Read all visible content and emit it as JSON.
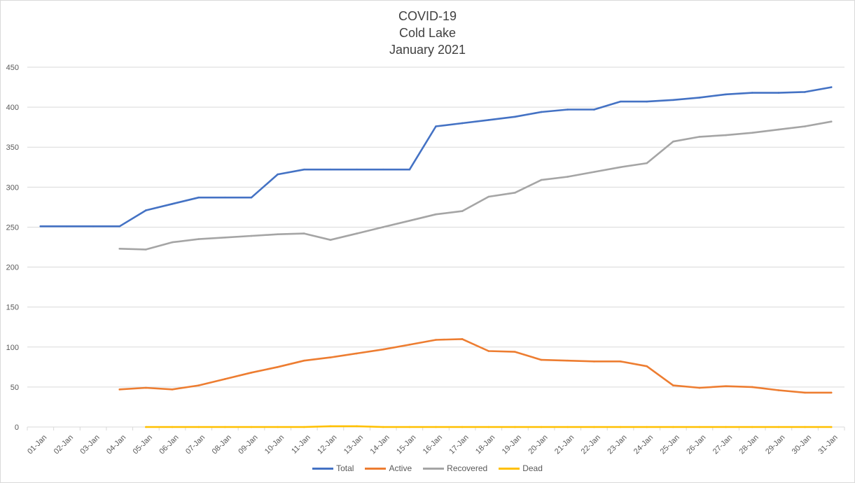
{
  "chart_data": {
    "type": "line",
    "title": [
      "COVID-19",
      "Cold Lake",
      "January 2021"
    ],
    "categories": [
      "01-Jan",
      "02-Jan",
      "03-Jan",
      "04-Jan",
      "05-Jan",
      "06-Jan",
      "07-Jan",
      "08-Jan",
      "09-Jan",
      "10-Jan",
      "11-Jan",
      "12-Jan",
      "13-Jan",
      "14-Jan",
      "15-Jan",
      "16-Jan",
      "17-Jan",
      "18-Jan",
      "19-Jan",
      "20-Jan",
      "21-Jan",
      "22-Jan",
      "23-Jan",
      "24-Jan",
      "25-Jan",
      "26-Jan",
      "27-Jan",
      "28-Jan",
      "29-Jan",
      "30-Jan",
      "31-Jan"
    ],
    "ylim": [
      0,
      450
    ],
    "yticks": [
      0,
      50,
      100,
      150,
      200,
      250,
      300,
      350,
      400,
      450
    ],
    "grid": true,
    "legend_position": "bottom",
    "series": [
      {
        "name": "Total",
        "color": "#4472c4",
        "values": [
          251,
          251,
          251,
          251,
          271,
          279,
          287,
          287,
          287,
          316,
          322,
          322,
          322,
          322,
          322,
          376,
          380,
          384,
          388,
          394,
          397,
          397,
          407,
          407,
          409,
          412,
          416,
          418,
          418,
          419,
          425
        ]
      },
      {
        "name": "Active",
        "color": "#ed7d31",
        "values": [
          null,
          null,
          null,
          47,
          49,
          47,
          52,
          60,
          68,
          75,
          83,
          87,
          92,
          97,
          103,
          109,
          110,
          95,
          94,
          84,
          83,
          82,
          82,
          76,
          52,
          49,
          51,
          50,
          46,
          43,
          43
        ]
      },
      {
        "name": "Recovered",
        "color": "#a5a5a5",
        "values": [
          null,
          null,
          null,
          223,
          222,
          231,
          235,
          237,
          239,
          241,
          242,
          234,
          242,
          250,
          258,
          266,
          270,
          288,
          293,
          309,
          313,
          319,
          325,
          330,
          357,
          363,
          365,
          368,
          372,
          376,
          382
        ]
      },
      {
        "name": "Dead",
        "color": "#ffc000",
        "values": [
          null,
          null,
          null,
          null,
          0,
          0,
          0,
          0,
          0,
          0,
          0,
          1,
          1,
          0,
          0,
          0,
          0,
          0,
          0,
          0,
          0,
          0,
          0,
          0,
          0,
          0,
          0,
          0,
          0,
          0,
          0
        ]
      }
    ]
  }
}
